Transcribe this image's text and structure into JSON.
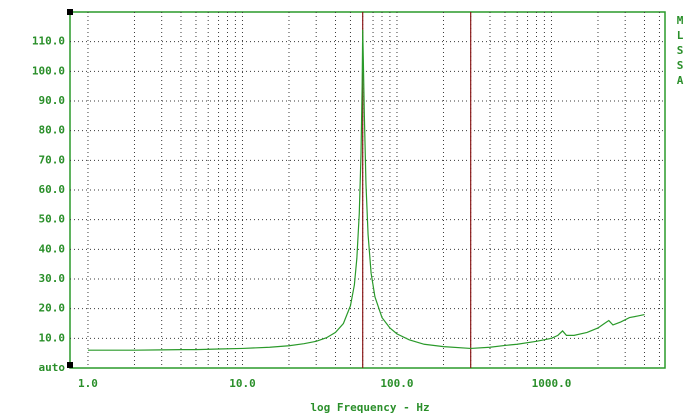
{
  "chart_data": {
    "type": "line",
    "side_label": "MLSSA",
    "x_label": "log Frequency - Hz",
    "xscale": "log",
    "xlim": [
      0.765,
      5430
    ],
    "xticks": [
      {
        "value": 1,
        "label": "1.0"
      },
      {
        "value": 10,
        "label": "10.0"
      },
      {
        "value": 100,
        "label": "100.0"
      },
      {
        "value": 1000,
        "label": "1000.0"
      }
    ],
    "xminorticks": [
      2,
      3,
      4,
      5,
      6,
      7,
      8,
      9,
      20,
      30,
      40,
      50,
      60,
      70,
      80,
      90,
      200,
      300,
      400,
      500,
      600,
      700,
      800,
      900,
      2000,
      3000,
      4000,
      5000
    ],
    "ylim": [
      0,
      120
    ],
    "yticks": [
      {
        "value": 0,
        "label": "auto"
      },
      {
        "value": 10,
        "label": "10.0"
      },
      {
        "value": 20,
        "label": "20.0"
      },
      {
        "value": 30,
        "label": "30.0"
      },
      {
        "value": 40,
        "label": "40.0"
      },
      {
        "value": 50,
        "label": "50.0"
      },
      {
        "value": 60,
        "label": "60.0"
      },
      {
        "value": 70,
        "label": "70.0"
      },
      {
        "value": 80,
        "label": "80.0"
      },
      {
        "value": 90,
        "label": "90.0"
      },
      {
        "value": 100,
        "label": "100.0"
      },
      {
        "value": 110,
        "label": "110.0"
      }
    ],
    "grid": true,
    "markers": [
      60,
      300
    ],
    "marker_color": "#8b1a1a",
    "x": [
      1,
      1.5,
      2,
      3,
      4,
      5,
      7,
      10,
      15,
      20,
      25,
      30,
      35,
      40,
      45,
      50,
      53,
      55,
      57,
      58.5,
      59.5,
      60,
      60.5,
      61.5,
      63,
      65,
      68,
      72,
      80,
      90,
      100,
      120,
      150,
      200,
      300,
      400,
      500,
      600,
      800,
      1000,
      1100,
      1180,
      1250,
      1400,
      1700,
      2000,
      2200,
      2350,
      2500,
      2800,
      3200,
      3600,
      4000
    ],
    "series": [
      {
        "color": "#2a9a2a",
        "values": [
          6,
          6,
          6,
          6.1,
          6.2,
          6.2,
          6.4,
          6.6,
          7,
          7.5,
          8.2,
          9,
          10.2,
          12,
          15,
          21,
          28,
          37,
          52,
          72,
          95,
          114,
          105,
          85,
          62,
          45,
          32,
          24,
          17,
          13.5,
          11.5,
          9.5,
          8,
          7.2,
          6.6,
          7,
          7.6,
          8,
          9,
          10,
          11,
          12.5,
          11,
          11,
          12,
          13.5,
          15,
          16,
          14.5,
          15.5,
          17,
          17.5,
          18
        ]
      }
    ]
  }
}
